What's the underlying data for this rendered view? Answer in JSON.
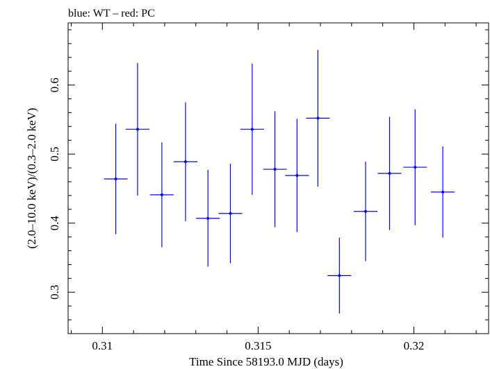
{
  "chart_data": {
    "type": "scatter",
    "title": "blue: WT – red: PC",
    "xlabel": "Time Since 58193.0 MJD (days)",
    "ylabel": "(2.0–10.0 keV)/(0.3–2.0 keV)",
    "xlim": [
      0.3089,
      0.3224
    ],
    "ylim": [
      0.24,
      0.69
    ],
    "x_ticks": [
      0.31,
      0.315,
      0.32
    ],
    "x_tick_labels": [
      "0.31",
      "0.315",
      "0.32"
    ],
    "y_ticks": [
      0.3,
      0.4,
      0.5,
      0.6
    ],
    "y_tick_labels": [
      "0.3",
      "0.4",
      "0.5",
      "0.6"
    ],
    "grid": false,
    "series": [
      {
        "color": "#0000ff",
        "points": [
          {
            "x": 0.31043,
            "y": 0.464,
            "xerr": 0.00038,
            "yerr_low": 0.08,
            "yerr_high": 0.08
          },
          {
            "x": 0.31113,
            "y": 0.536,
            "xerr": 0.00038,
            "yerr_low": 0.096,
            "yerr_high": 0.096
          },
          {
            "x": 0.31191,
            "y": 0.441,
            "xerr": 0.00038,
            "yerr_low": 0.076,
            "yerr_high": 0.076
          },
          {
            "x": 0.31267,
            "y": 0.489,
            "xerr": 0.00038,
            "yerr_low": 0.086,
            "yerr_high": 0.086
          },
          {
            "x": 0.31339,
            "y": 0.407,
            "xerr": 0.00038,
            "yerr_low": 0.07,
            "yerr_high": 0.07
          },
          {
            "x": 0.31411,
            "y": 0.414,
            "xerr": 0.00038,
            "yerr_low": 0.072,
            "yerr_high": 0.072
          },
          {
            "x": 0.31481,
            "y": 0.536,
            "xerr": 0.00038,
            "yerr_low": 0.095,
            "yerr_high": 0.095
          },
          {
            "x": 0.31554,
            "y": 0.478,
            "xerr": 0.00038,
            "yerr_low": 0.084,
            "yerr_high": 0.084
          },
          {
            "x": 0.31625,
            "y": 0.469,
            "xerr": 0.00038,
            "yerr_low": 0.082,
            "yerr_high": 0.082
          },
          {
            "x": 0.31692,
            "y": 0.552,
            "xerr": 0.00038,
            "yerr_low": 0.099,
            "yerr_high": 0.099
          },
          {
            "x": 0.31761,
            "y": 0.324,
            "xerr": 0.00038,
            "yerr_low": 0.055,
            "yerr_high": 0.055
          },
          {
            "x": 0.31845,
            "y": 0.417,
            "xerr": 0.00038,
            "yerr_low": 0.072,
            "yerr_high": 0.072
          },
          {
            "x": 0.31922,
            "y": 0.472,
            "xerr": 0.00038,
            "yerr_low": 0.082,
            "yerr_high": 0.082
          },
          {
            "x": 0.32004,
            "y": 0.481,
            "xerr": 0.00038,
            "yerr_low": 0.084,
            "yerr_high": 0.084
          },
          {
            "x": 0.32093,
            "y": 0.445,
            "xerr": 0.00038,
            "yerr_low": 0.066,
            "yerr_high": 0.066
          }
        ]
      }
    ]
  }
}
